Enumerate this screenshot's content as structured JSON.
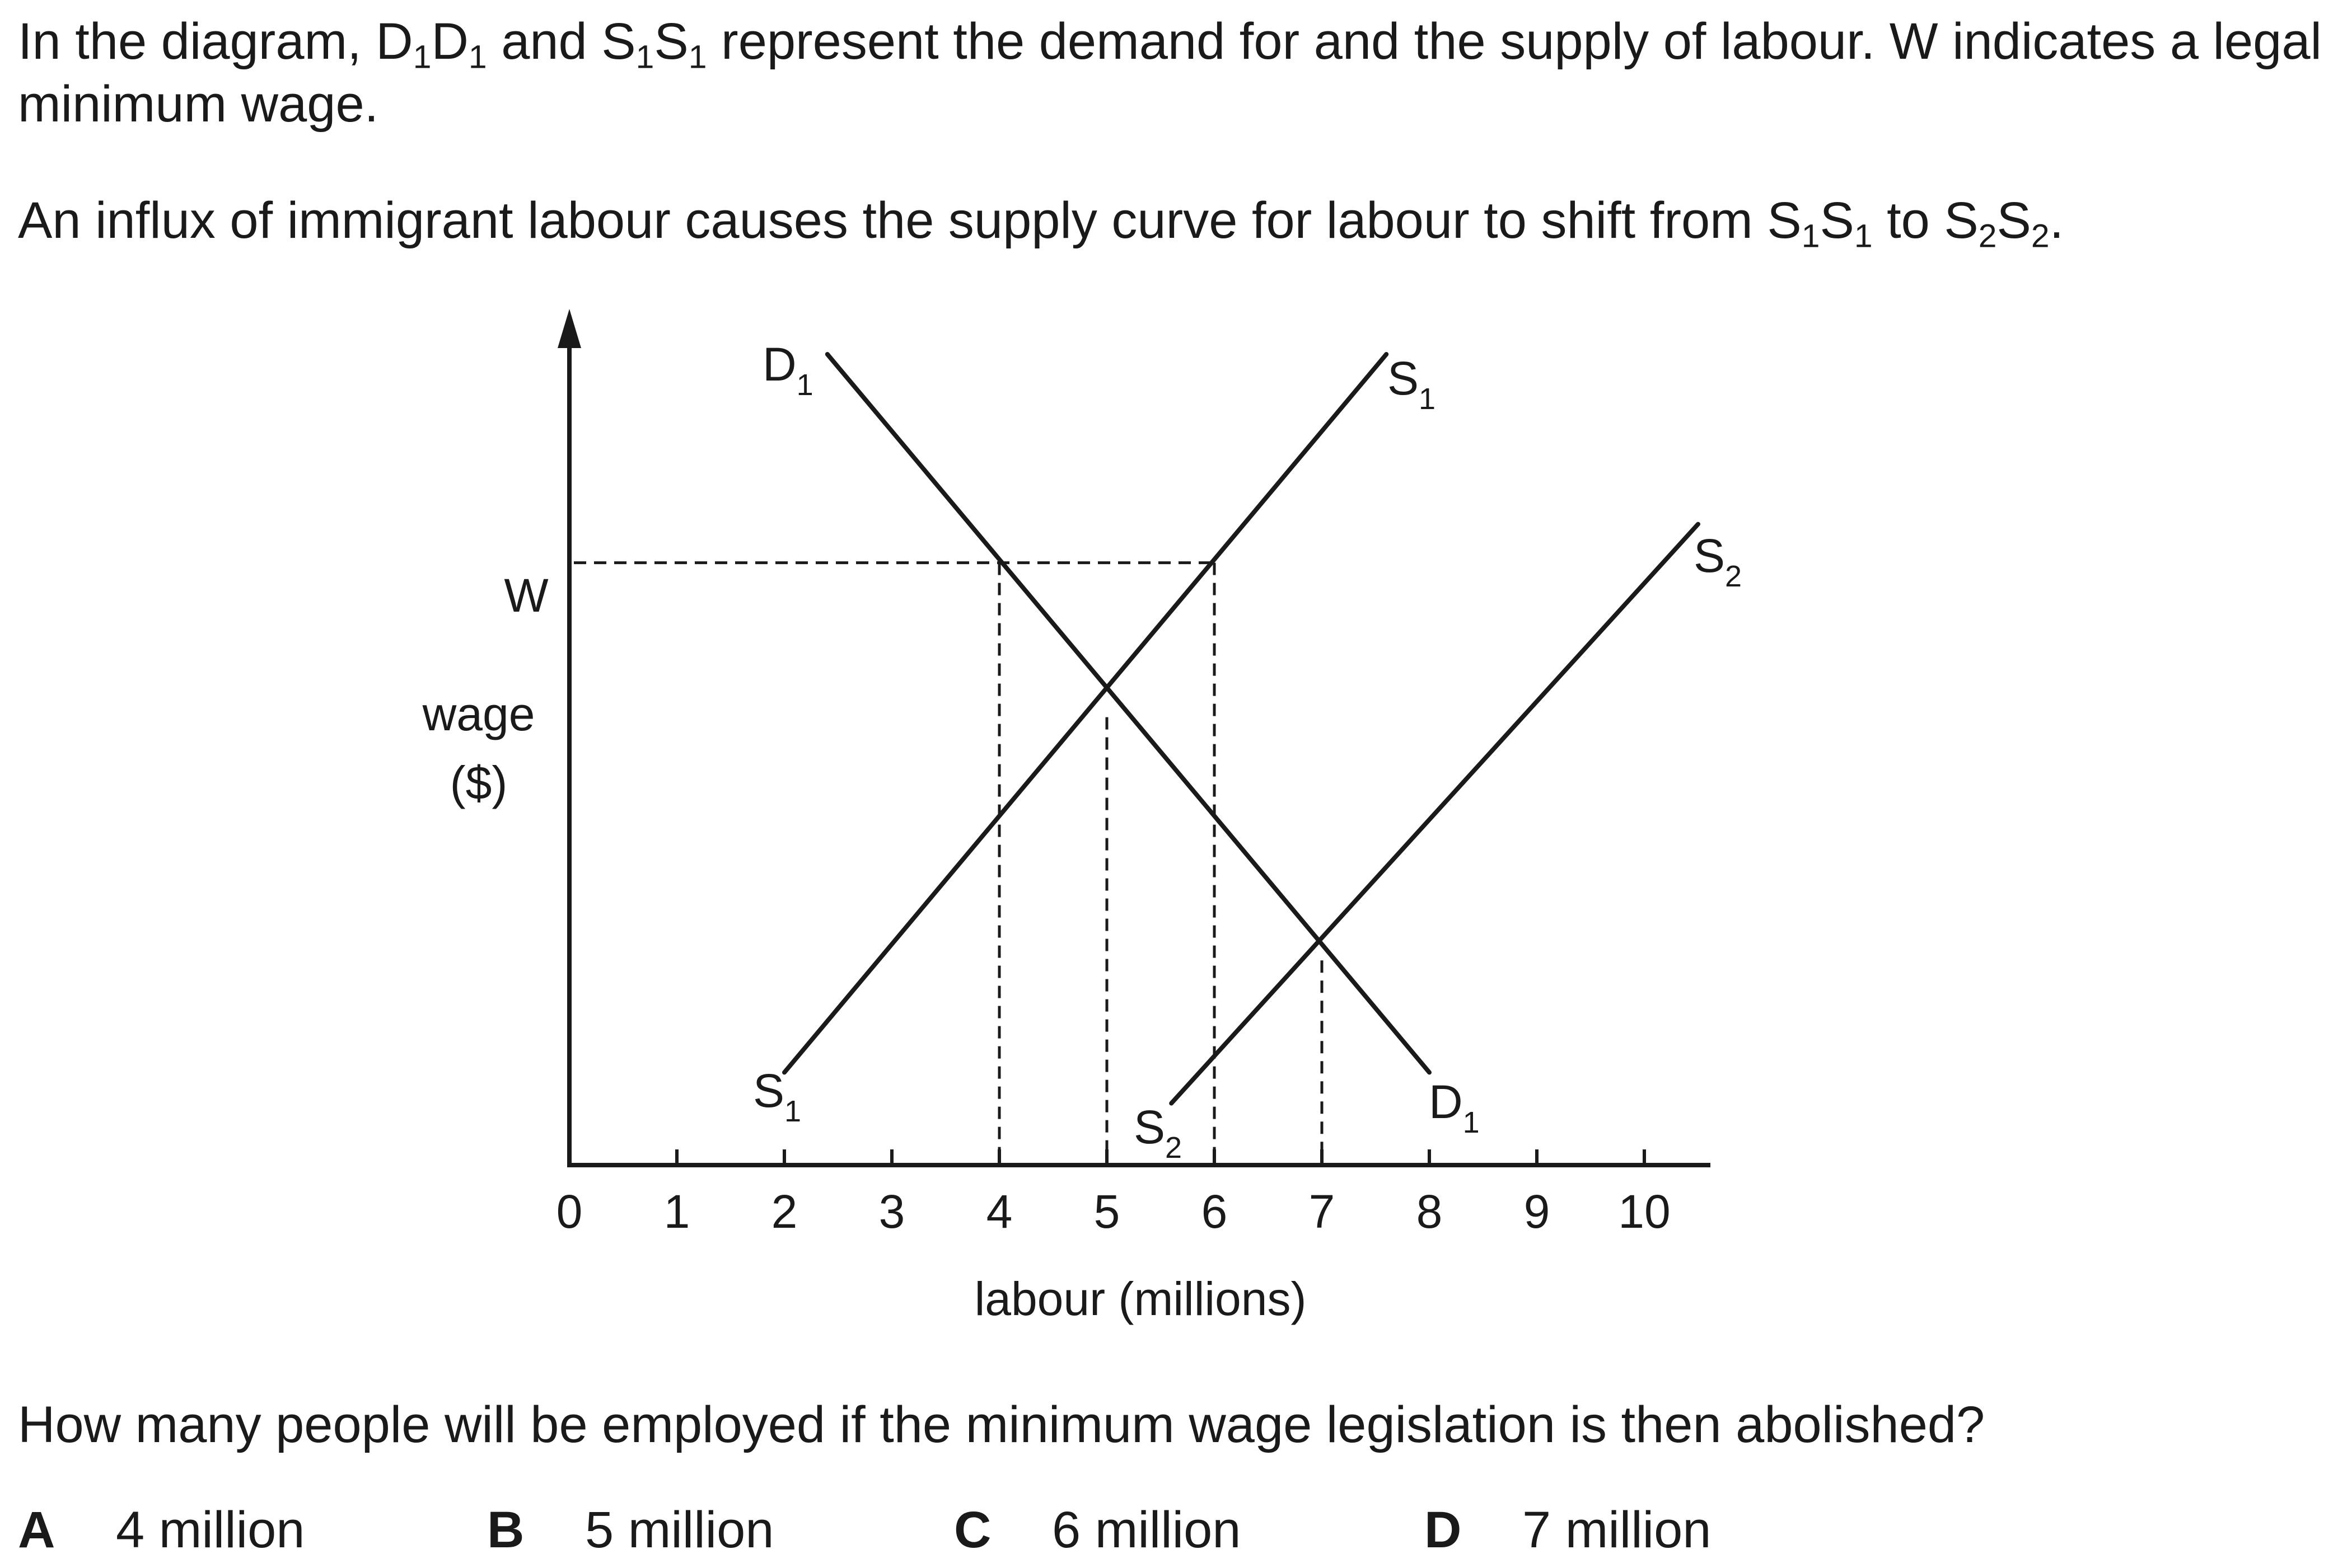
{
  "intro": {
    "part1": "In the diagram, D",
    "s1": "1",
    "part2": "D",
    "s2": "1",
    "part3": " and S",
    "s3": "1",
    "part4": "S",
    "s4": "1",
    "part5": " represent the demand for and the supply of labour. W indicates a legal minimum wage."
  },
  "influx": {
    "part1": "An influx of immigrant labour causes the supply curve for labour to shift from S",
    "s1": "1",
    "part2": "S",
    "s2": "1",
    "part3": " to S",
    "s3": "2",
    "part4": "S",
    "s4": "2",
    "part5": "."
  },
  "question": "How many people will be employed if the minimum wage legislation is then abolished?",
  "options": [
    {
      "letter": "A",
      "text": "4 million"
    },
    {
      "letter": "B",
      "text": "5 million"
    },
    {
      "letter": "C",
      "text": "6 million"
    },
    {
      "letter": "D",
      "text": "7 million"
    }
  ],
  "diagram": {
    "x_axis_label": "labour (millions)",
    "y_axis_label_line1": "wage",
    "y_axis_label_line2": "($)",
    "x_ticks": [
      "0",
      "1",
      "2",
      "3",
      "4",
      "5",
      "6",
      "7",
      "8",
      "9",
      "10"
    ],
    "min_wage_label": "W",
    "curve_labels": {
      "D1_top": {
        "letter": "D",
        "sub": "1"
      },
      "D1_bottom": {
        "letter": "D",
        "sub": "1"
      },
      "S1_top": {
        "letter": "S",
        "sub": "1"
      },
      "S1_bottom": {
        "letter": "S",
        "sub": "1"
      },
      "S2_top": {
        "letter": "S",
        "sub": "2"
      },
      "S2_bottom": {
        "letter": "S",
        "sub": "2"
      }
    },
    "curves": {
      "D1": {
        "from": [
          2.4,
          10.5
        ],
        "to": [
          8.0,
          1.2
        ]
      },
      "S1": {
        "from": [
          2.0,
          1.2
        ],
        "to": [
          7.6,
          10.5
        ]
      },
      "S2": {
        "from": [
          5.6,
          0.8
        ],
        "to": [
          10.5,
          8.3
        ]
      }
    },
    "min_wage_level": 7.8,
    "guide_lines_x": [
      4,
      5,
      6,
      7
    ],
    "line_color": "#1a1a1a"
  }
}
